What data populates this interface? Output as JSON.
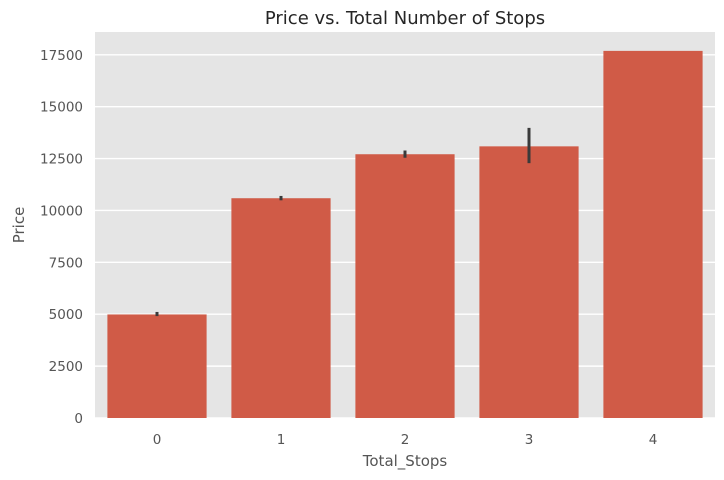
{
  "chart_data": {
    "type": "bar",
    "title": "Price vs. Total Number of Stops",
    "xlabel": "Total_Stops",
    "ylabel": "Price",
    "categories": [
      "0",
      "1",
      "2",
      "3",
      "4"
    ],
    "values": [
      4990,
      10590,
      12710,
      13090,
      17690
    ],
    "error_low": [
      4910,
      10490,
      12540,
      12280,
      17690
    ],
    "error_high": [
      5110,
      10700,
      12890,
      13980,
      17690
    ],
    "ylim": [
      0,
      18600
    ],
    "yticks": [
      0,
      2500,
      5000,
      7500,
      10000,
      12500,
      15000,
      17500
    ],
    "ytick_labels": [
      "0",
      "2500",
      "5000",
      "7500",
      "10000",
      "12500",
      "15000",
      "17500"
    ],
    "grid": true,
    "colors": {
      "bar": "#d05b47",
      "background": "#e5e5e5",
      "grid": "#ffffff",
      "error_bar": "#3a3a3a"
    }
  }
}
